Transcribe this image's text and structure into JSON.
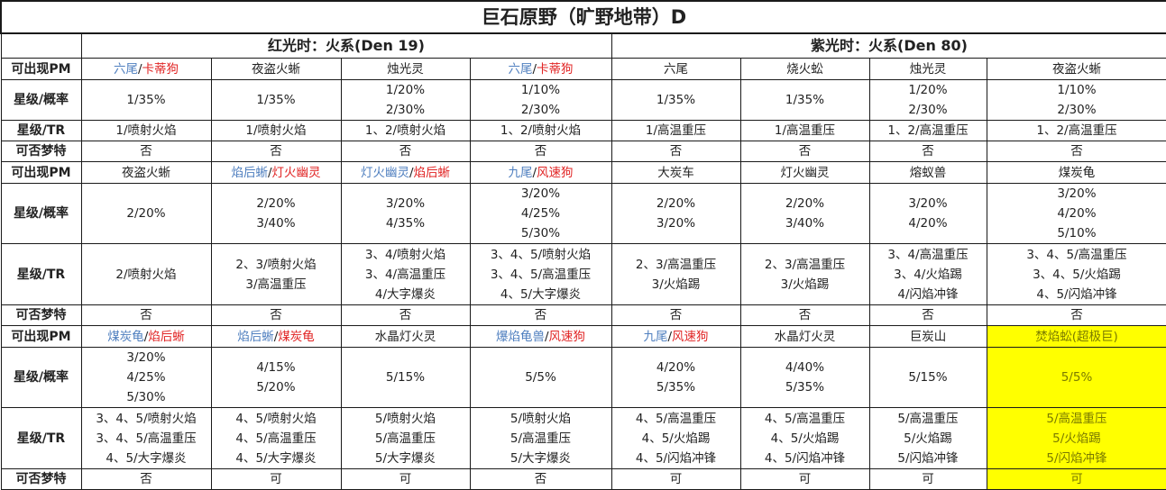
{
  "title": "巨石原野（旷野地带）D",
  "red_header": "红光时：火系(Den 19)",
  "purple_header": "紫光时：火系(Den 80)",
  "labels": {
    "pm": "可出现PM",
    "rate": "星级/概率",
    "tr": "星级/TR",
    "dream": "可否梦特"
  },
  "blocks": [
    {
      "pm": [
        [
          {
            "t": "六尾",
            "c": "blue"
          },
          {
            "t": "/",
            "c": ""
          },
          {
            "t": "卡蒂狗",
            "c": "red"
          }
        ],
        [
          {
            "t": "夜盗火蜥",
            "c": ""
          }
        ],
        [
          {
            "t": "烛光灵",
            "c": ""
          }
        ],
        [
          {
            "t": "六尾",
            "c": "blue"
          },
          {
            "t": "/",
            "c": ""
          },
          {
            "t": "卡蒂狗",
            "c": "red"
          }
        ],
        [
          {
            "t": "六尾",
            "c": ""
          }
        ],
        [
          {
            "t": "烧火蚣",
            "c": ""
          }
        ],
        [
          {
            "t": "烛光灵",
            "c": ""
          }
        ],
        [
          {
            "t": "夜盗火蜥",
            "c": ""
          }
        ]
      ],
      "rate": [
        [
          "1/35%"
        ],
        [
          "1/35%"
        ],
        [
          "1/20%",
          "2/30%"
        ],
        [
          "1/10%",
          "2/30%"
        ],
        [
          "1/35%"
        ],
        [
          "1/35%"
        ],
        [
          "1/20%",
          "2/30%"
        ],
        [
          "1/10%",
          "2/30%"
        ]
      ],
      "tr": [
        [
          "1/喷射火焰"
        ],
        [
          "1/喷射火焰"
        ],
        [
          "1、2/喷射火焰"
        ],
        [
          "1、2/喷射火焰"
        ],
        [
          "1/高温重压"
        ],
        [
          "1/高温重压"
        ],
        [
          "1、2/高温重压"
        ],
        [
          "1、2/高温重压"
        ]
      ],
      "dream": [
        "否",
        "否",
        "否",
        "否",
        "否",
        "否",
        "否",
        "否"
      ]
    },
    {
      "pm": [
        [
          {
            "t": "夜盗火蜥",
            "c": ""
          }
        ],
        [
          {
            "t": "焰后蜥",
            "c": "blue"
          },
          {
            "t": "/",
            "c": ""
          },
          {
            "t": "灯火幽灵",
            "c": "red"
          }
        ],
        [
          {
            "t": "灯火幽灵",
            "c": "blue"
          },
          {
            "t": "/",
            "c": ""
          },
          {
            "t": "焰后蜥",
            "c": "red"
          }
        ],
        [
          {
            "t": "九尾",
            "c": "blue"
          },
          {
            "t": "/",
            "c": ""
          },
          {
            "t": "风速狗",
            "c": "red"
          }
        ],
        [
          {
            "t": "大炭车",
            "c": ""
          }
        ],
        [
          {
            "t": "灯火幽灵",
            "c": ""
          }
        ],
        [
          {
            "t": "熔蚁兽",
            "c": ""
          }
        ],
        [
          {
            "t": "煤炭龟",
            "c": ""
          }
        ]
      ],
      "rate": [
        [
          "2/20%"
        ],
        [
          "2/20%",
          "3/40%"
        ],
        [
          "3/20%",
          "4/35%"
        ],
        [
          "3/20%",
          "4/25%",
          "5/30%"
        ],
        [
          "2/20%",
          "3/20%"
        ],
        [
          "2/20%",
          "3/40%"
        ],
        [
          "3/20%",
          "4/20%"
        ],
        [
          "3/20%",
          "4/20%",
          "5/10%"
        ]
      ],
      "tr": [
        [
          "2/喷射火焰"
        ],
        [
          "2、3/喷射火焰",
          "3/高温重压"
        ],
        [
          "3、4/喷射火焰",
          "3、4/高温重压",
          "4/大字爆炎"
        ],
        [
          "3、4、5/喷射火焰",
          "3、4、5/高温重压",
          "4、5/大字爆炎"
        ],
        [
          "2、3/高温重压",
          "3/火焰踢"
        ],
        [
          "2、3/高温重压",
          "3/火焰踢"
        ],
        [
          "3、4/高温重压",
          "3、4/火焰踢",
          "4/闪焰冲锋"
        ],
        [
          "3、4、5/高温重压",
          "3、4、5/火焰踢",
          "4、5/闪焰冲锋"
        ]
      ],
      "dream": [
        "否",
        "否",
        "否",
        "否",
        "否",
        "否",
        "否",
        "否"
      ]
    },
    {
      "pm": [
        [
          {
            "t": "煤炭龟",
            "c": "blue"
          },
          {
            "t": "/",
            "c": ""
          },
          {
            "t": "焰后蜥",
            "c": "red"
          }
        ],
        [
          {
            "t": "焰后蜥",
            "c": "blue"
          },
          {
            "t": "/",
            "c": ""
          },
          {
            "t": "煤炭龟",
            "c": "red"
          }
        ],
        [
          {
            "t": "水晶灯火灵",
            "c": ""
          }
        ],
        [
          {
            "t": "爆焰龟兽",
            "c": "blue"
          },
          {
            "t": "/",
            "c": ""
          },
          {
            "t": "风速狗",
            "c": "red"
          }
        ],
        [
          {
            "t": "九尾",
            "c": "blue"
          },
          {
            "t": "/",
            "c": ""
          },
          {
            "t": "风速狗",
            "c": "red"
          }
        ],
        [
          {
            "t": "水晶灯火灵",
            "c": ""
          }
        ],
        [
          {
            "t": "巨炭山",
            "c": ""
          }
        ],
        [
          {
            "t": "焚焰蚣(超极巨)",
            "c": "yel"
          }
        ]
      ],
      "rate": [
        [
          "3/20%",
          "4/25%",
          "5/30%"
        ],
        [
          "4/15%",
          "5/20%"
        ],
        [
          "5/15%"
        ],
        [
          "5/5%"
        ],
        [
          "4/20%",
          "5/35%"
        ],
        [
          "4/40%",
          "5/35%"
        ],
        [
          "5/15%"
        ],
        [
          "5/5%"
        ]
      ],
      "tr": [
        [
          "3、4、5/喷射火焰",
          "3、4、5/高温重压",
          "4、5/大字爆炎"
        ],
        [
          "4、5/喷射火焰",
          "4、5/高温重压",
          "4、5/大字爆炎"
        ],
        [
          "5/喷射火焰",
          "5/高温重压",
          "5/大字爆炎"
        ],
        [
          "5/喷射火焰",
          "5/高温重压",
          "5/大字爆炎"
        ],
        [
          "4、5/高温重压",
          "4、5/火焰踢",
          "4、5/闪焰冲锋"
        ],
        [
          "4、5/高温重压",
          "4、5/火焰踢",
          "4、5/闪焰冲锋"
        ],
        [
          "5/高温重压",
          "5/火焰踢",
          "5/闪焰冲锋"
        ],
        [
          "5/高温重压",
          "5/火焰踢",
          "5/闪焰冲锋"
        ]
      ],
      "dream": [
        "否",
        "可",
        "可",
        "否",
        "可",
        "可",
        "可",
        "可"
      ]
    }
  ],
  "highlight": {
    "block": 2,
    "col": 7,
    "color": "#ffff00"
  }
}
